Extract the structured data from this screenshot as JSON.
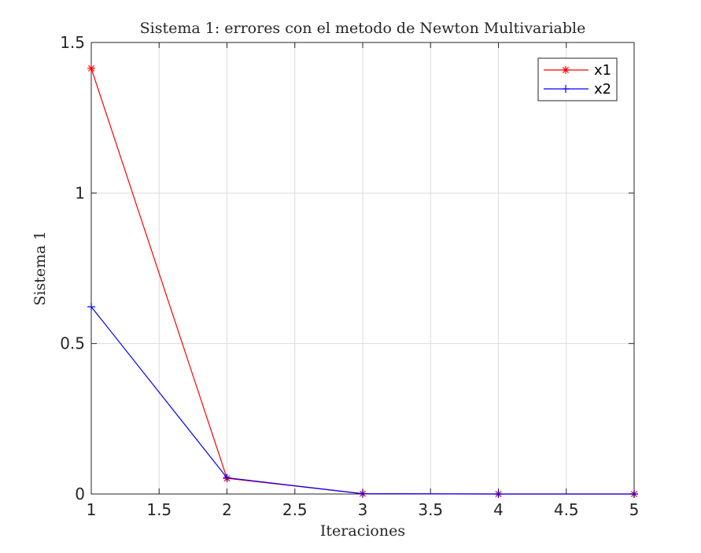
{
  "chart_data": {
    "type": "line",
    "title": "Sistema 1: errores con el metodo de Newton Multivariable",
    "xlabel": "Iteraciones",
    "ylabel": "Sistema 1",
    "xlim": [
      1,
      5
    ],
    "ylim": [
      0,
      1.5
    ],
    "x_ticks": [
      1,
      1.5,
      2,
      2.5,
      3,
      3.5,
      4,
      4.5,
      5
    ],
    "x_tick_labels": [
      "1",
      "1.5",
      "2",
      "2.5",
      "3",
      "3.5",
      "4",
      "4.5",
      "5"
    ],
    "y_ticks": [
      0,
      0.5,
      1,
      1.5
    ],
    "y_tick_labels": [
      "0",
      "0.5",
      "1",
      "1.5"
    ],
    "grid": true,
    "legend_position": "top-right",
    "x": [
      1,
      2,
      3,
      4,
      5
    ],
    "series": [
      {
        "name": "x1",
        "color": "#ff0000",
        "marker": "asterisk",
        "values": [
          1.414,
          0.052,
          0.001,
          0.0,
          0.0
        ]
      },
      {
        "name": "x2",
        "color": "#0000ff",
        "marker": "plus",
        "values": [
          0.622,
          0.054,
          0.001,
          0.0,
          0.0
        ]
      }
    ]
  }
}
